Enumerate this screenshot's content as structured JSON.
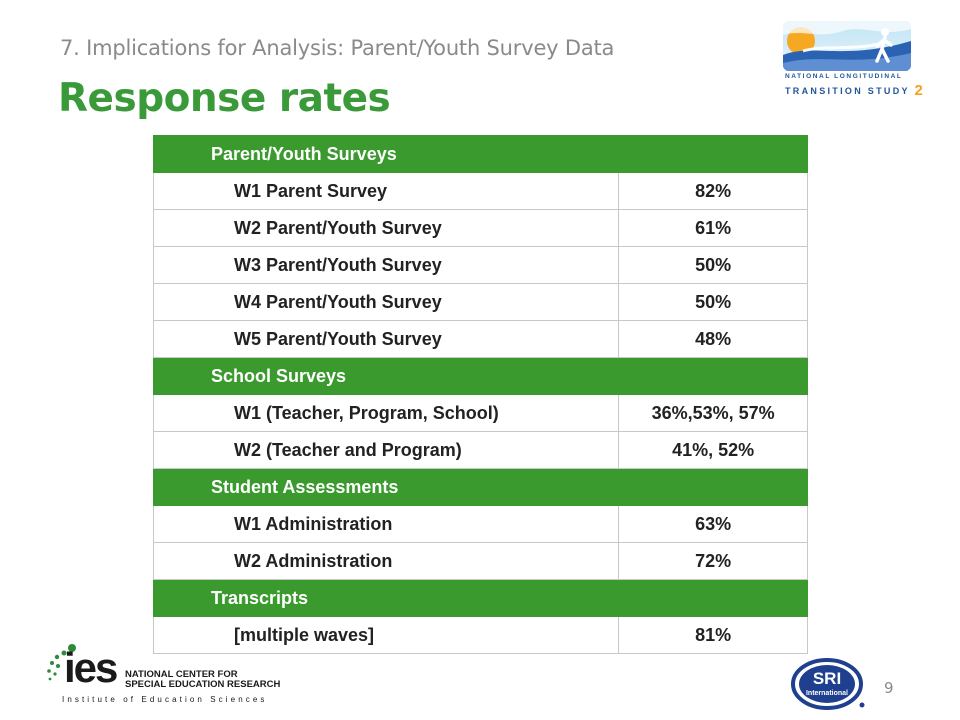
{
  "header": {
    "subtitle": "7. Implications for Analysis: Parent/Youth Survey Data",
    "title": "Response rates"
  },
  "nlts_logo": {
    "line1": "NATIONAL LONGITUDINAL",
    "line2": "TRANSITION STUDY",
    "number": "2"
  },
  "table": {
    "sections": [
      {
        "heading": "Parent/Youth Surveys",
        "rows": [
          {
            "label": "W1 Parent Survey",
            "value": "82%"
          },
          {
            "label": "W2 Parent/Youth Survey",
            "value": "61%"
          },
          {
            "label": "W3 Parent/Youth Survey",
            "value": "50%"
          },
          {
            "label": "W4 Parent/Youth Survey",
            "value": "50%"
          },
          {
            "label": "W5 Parent/Youth Survey",
            "value": "48%"
          }
        ]
      },
      {
        "heading": "School Surveys",
        "rows": [
          {
            "label": "W1 (Teacher, Program, School)",
            "value": "36%,53%, 57%"
          },
          {
            "label": "W2 (Teacher and Program)",
            "value": "41%, 52%"
          }
        ]
      },
      {
        "heading": "Student Assessments",
        "rows": [
          {
            "label": "W1 Administration",
            "value": "63%"
          },
          {
            "label": "W2 Administration",
            "value": "72%"
          }
        ]
      },
      {
        "heading": "Transcripts",
        "rows": [
          {
            "label": "[multiple waves]",
            "value": "81%"
          }
        ]
      }
    ]
  },
  "footer": {
    "ies_word": "ies",
    "ies_line1": "NATIONAL CENTER FOR",
    "ies_line2": "SPECIAL EDUCATION RESEARCH",
    "ies_institute": "Institute of Education Sciences",
    "sri_top": "SRI",
    "sri_bottom": "International",
    "page_number": "9"
  },
  "colors": {
    "accent_green": "#3a9a2e",
    "title_green": "#3a9a3a",
    "subtitle_gray": "#8a8a8a",
    "nlts_blue": "#23559b",
    "sri_blue": "#1f3f8f"
  },
  "icons": [
    "walking-figure-icon",
    "sun-icon",
    "ies-dots-icon",
    "sri-seal-icon"
  ]
}
